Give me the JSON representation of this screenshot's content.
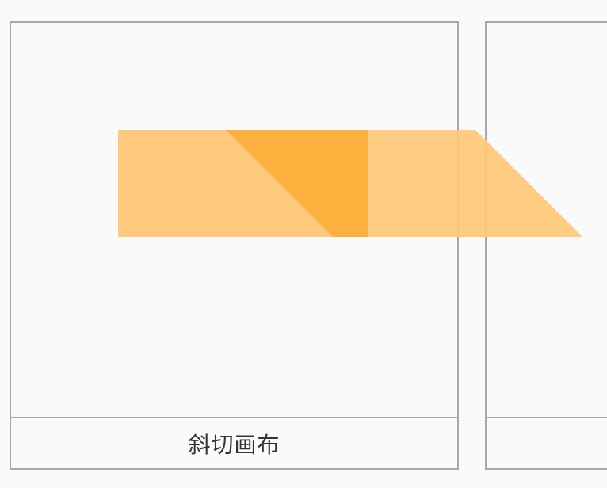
{
  "cards": [
    {
      "caption": "斜切画布"
    },
    {
      "caption": ""
    }
  ],
  "colors": {
    "background": "#fafafa",
    "card_border": "#a8a8a8",
    "shape_light": "#fec97a",
    "shape_overlap": "#feb13e"
  },
  "canvas_demo": {
    "original_shape": "rectangle",
    "transformed_shape": "parallelogram",
    "transform": "skew",
    "overlap_region": "triangle"
  }
}
